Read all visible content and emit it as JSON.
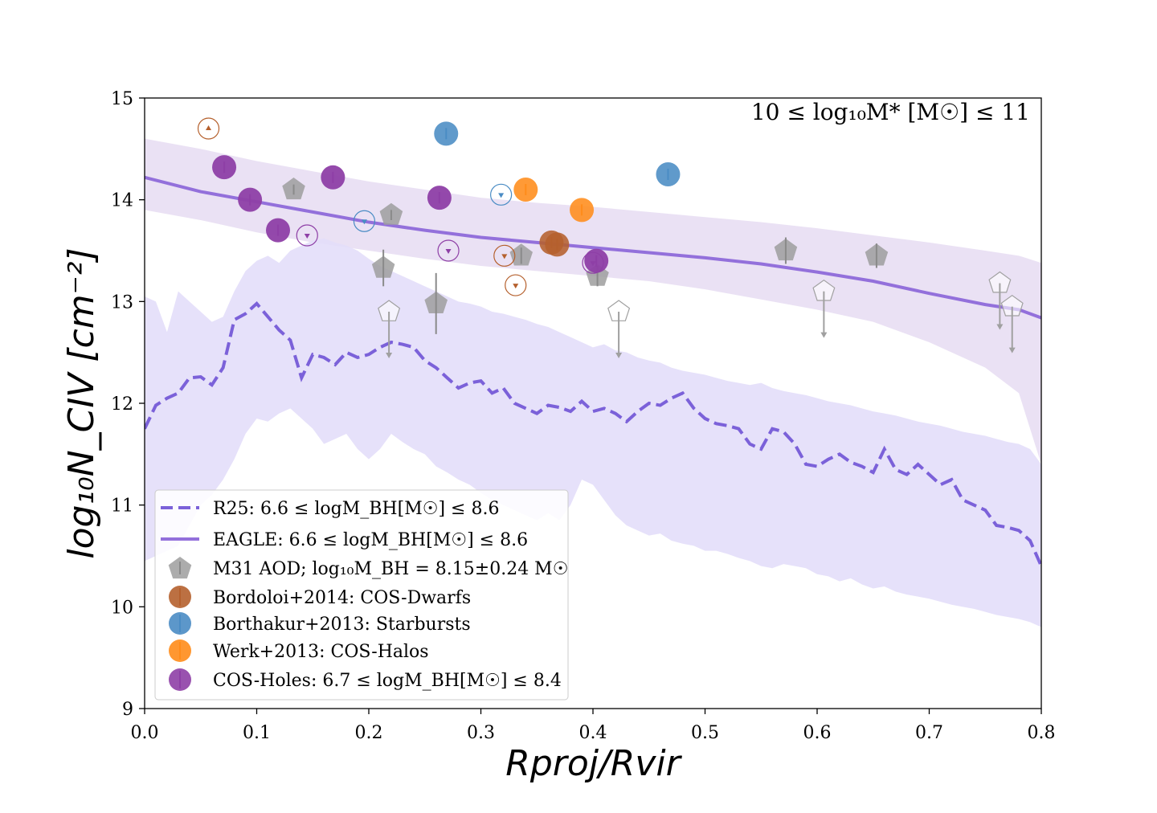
{
  "chart_data": {
    "type": "scatter",
    "title": "",
    "annotation": "10 ≤ log₁₀M* [M☉] ≤ 11",
    "xlabel": "Rproj/Rvir",
    "ylabel": "log₁₀N_CIV [cm⁻²]",
    "xlim": [
      0.0,
      0.8
    ],
    "ylim": [
      9,
      15
    ],
    "xticks": [
      "0.0",
      "0.1",
      "0.2",
      "0.3",
      "0.4",
      "0.5",
      "0.6",
      "0.7",
      "0.8"
    ],
    "yticks": [
      "9",
      "10",
      "11",
      "12",
      "13",
      "14",
      "15"
    ],
    "grid": false,
    "legend_position": "lower-left",
    "colors": {
      "model": "#7b61d9",
      "model_line": "#9370db",
      "eagle_band": "#e6dcf2",
      "r25_band": "#e3defa",
      "m31": "#9e9e9e",
      "bordoloi": "#b5602d",
      "borthakur": "#4a8cc4",
      "werk": "#ff8c1a",
      "cosholes": "#8e3fa6"
    },
    "legend": [
      {
        "key": "r25",
        "label": "R25: 6.6 ≤ logM_BH[M☉] ≤ 8.6"
      },
      {
        "key": "eagle",
        "label": "EAGLE:  6.6 ≤ logM_BH[M☉] ≤ 8.6"
      },
      {
        "key": "m31",
        "label": "M31 AOD; log₁₀M_BH = 8.15±0.24 M☉"
      },
      {
        "key": "bordoloi",
        "label": "Bordoloi+2014: COS-Dwarfs"
      },
      {
        "key": "borthakur",
        "label": "Borthakur+2013: Starbursts"
      },
      {
        "key": "werk",
        "label": "Werk+2013: COS-Halos"
      },
      {
        "key": "cosholes",
        "label": "COS-Holes: 6.7 ≤ logM_BH[M☉] ≤ 8.4"
      }
    ],
    "series": [
      {
        "name": "R25: 6.6 ≤ logM_BH[M☉] ≤ 8.6",
        "kind": "dashed-line-with-band",
        "x": [
          0.0,
          0.01,
          0.02,
          0.03,
          0.04,
          0.05,
          0.06,
          0.07,
          0.08,
          0.09,
          0.1,
          0.11,
          0.12,
          0.13,
          0.14,
          0.15,
          0.16,
          0.17,
          0.18,
          0.19,
          0.2,
          0.21,
          0.22,
          0.23,
          0.24,
          0.25,
          0.26,
          0.27,
          0.28,
          0.29,
          0.3,
          0.31,
          0.32,
          0.33,
          0.34,
          0.35,
          0.36,
          0.37,
          0.38,
          0.39,
          0.4,
          0.41,
          0.42,
          0.43,
          0.44,
          0.45,
          0.46,
          0.47,
          0.48,
          0.49,
          0.5,
          0.51,
          0.52,
          0.53,
          0.54,
          0.55,
          0.56,
          0.57,
          0.58,
          0.59,
          0.6,
          0.61,
          0.62,
          0.63,
          0.64,
          0.65,
          0.66,
          0.67,
          0.68,
          0.69,
          0.7,
          0.71,
          0.72,
          0.73,
          0.74,
          0.75,
          0.76,
          0.77,
          0.78,
          0.79,
          0.8
        ],
        "y": [
          11.75,
          11.98,
          12.05,
          12.1,
          12.25,
          12.26,
          12.18,
          12.35,
          12.82,
          12.88,
          12.98,
          12.85,
          12.72,
          12.62,
          12.25,
          12.48,
          12.45,
          12.38,
          12.5,
          12.45,
          12.48,
          12.55,
          12.6,
          12.58,
          12.55,
          12.42,
          12.35,
          12.25,
          12.15,
          12.2,
          12.22,
          12.1,
          12.15,
          12.0,
          11.95,
          11.9,
          11.98,
          11.96,
          11.92,
          12.02,
          11.92,
          11.95,
          11.9,
          11.82,
          11.92,
          12.0,
          11.98,
          12.05,
          12.1,
          11.95,
          11.85,
          11.8,
          11.78,
          11.75,
          11.6,
          11.55,
          11.75,
          11.72,
          11.6,
          11.4,
          11.38,
          11.45,
          11.5,
          11.42,
          11.38,
          11.32,
          11.55,
          11.35,
          11.3,
          11.4,
          11.3,
          11.2,
          11.25,
          11.05,
          11.0,
          10.95,
          10.8,
          10.78,
          10.75,
          10.65,
          10.4
        ],
        "lo": [
          10.45,
          10.5,
          10.55,
          10.6,
          10.8,
          11.0,
          11.1,
          11.25,
          11.45,
          11.7,
          11.85,
          11.82,
          11.9,
          11.95,
          11.85,
          11.75,
          11.6,
          11.65,
          11.7,
          11.55,
          11.45,
          11.55,
          11.7,
          11.62,
          11.55,
          11.5,
          11.38,
          11.32,
          11.25,
          11.2,
          11.12,
          11.05,
          11.0,
          10.95,
          10.9,
          10.85,
          10.92,
          10.85,
          11.0,
          11.25,
          11.2,
          11.05,
          10.9,
          10.8,
          10.75,
          10.7,
          10.72,
          10.65,
          10.62,
          10.6,
          10.55,
          10.55,
          10.52,
          10.48,
          10.45,
          10.4,
          10.38,
          10.42,
          10.4,
          10.38,
          10.32,
          10.3,
          10.25,
          10.28,
          10.22,
          10.18,
          10.2,
          10.15,
          10.12,
          10.1,
          10.08,
          10.05,
          10.02,
          10.0,
          9.98,
          9.95,
          9.92,
          9.9,
          9.88,
          9.85,
          9.8
        ],
        "hi": [
          13.05,
          13.0,
          12.7,
          13.1,
          13.0,
          12.9,
          12.8,
          12.85,
          13.1,
          13.3,
          13.4,
          13.45,
          13.38,
          13.5,
          13.55,
          13.6,
          13.62,
          13.58,
          13.55,
          13.5,
          13.42,
          13.35,
          13.3,
          13.25,
          13.2,
          13.15,
          13.1,
          13.05,
          13.0,
          12.98,
          12.95,
          12.9,
          12.88,
          12.85,
          12.82,
          12.78,
          12.75,
          12.7,
          12.65,
          12.6,
          12.55,
          12.58,
          12.52,
          12.5,
          12.45,
          12.42,
          12.4,
          12.35,
          12.32,
          12.3,
          12.28,
          12.25,
          12.22,
          12.2,
          12.18,
          12.2,
          12.15,
          12.12,
          12.1,
          12.08,
          12.05,
          12.02,
          12.0,
          11.98,
          11.95,
          11.92,
          11.9,
          11.88,
          11.85,
          11.82,
          11.8,
          11.78,
          11.75,
          11.72,
          11.7,
          11.68,
          11.65,
          11.62,
          11.6,
          11.55,
          11.4
        ]
      },
      {
        "name": "EAGLE:  6.6 ≤ logM_BH[M☉] ≤ 8.6",
        "kind": "solid-line-with-band",
        "x": [
          0.0,
          0.05,
          0.1,
          0.15,
          0.2,
          0.25,
          0.3,
          0.35,
          0.4,
          0.45,
          0.5,
          0.55,
          0.6,
          0.65,
          0.7,
          0.75,
          0.78,
          0.8
        ],
        "y": [
          14.22,
          14.08,
          13.98,
          13.88,
          13.78,
          13.7,
          13.63,
          13.58,
          13.53,
          13.48,
          13.43,
          13.37,
          13.29,
          13.2,
          13.08,
          12.97,
          12.92,
          12.84
        ],
        "lo": [
          13.9,
          13.8,
          13.68,
          13.58,
          13.5,
          13.42,
          13.35,
          13.3,
          13.25,
          13.2,
          13.12,
          13.02,
          12.92,
          12.8,
          12.6,
          12.35,
          12.1,
          11.4
        ],
        "hi": [
          14.6,
          14.5,
          14.38,
          14.28,
          14.18,
          14.1,
          14.02,
          13.97,
          13.93,
          13.88,
          13.83,
          13.78,
          13.72,
          13.65,
          13.58,
          13.5,
          13.45,
          13.38
        ]
      },
      {
        "name": "M31 AOD; log₁₀M_BH = 8.15±0.24 M☉",
        "kind": "pentagon",
        "points": [
          {
            "x": 0.133,
            "y": 14.1,
            "err": 0.05
          },
          {
            "x": 0.22,
            "y": 13.85,
            "err": 0.05
          },
          {
            "x": 0.213,
            "y": 13.33,
            "err": 0.18
          },
          {
            "x": 0.26,
            "y": 12.98,
            "err": 0.3
          },
          {
            "x": 0.336,
            "y": 13.45,
            "err": 0.08
          },
          {
            "x": 0.404,
            "y": 13.25,
            "err": 0.1
          },
          {
            "x": 0.572,
            "y": 13.5,
            "err": 0.13
          },
          {
            "x": 0.653,
            "y": 13.45,
            "err": 0.12
          }
        ],
        "upper_limits": [
          {
            "x": 0.218,
            "y": 12.9
          },
          {
            "x": 0.423,
            "y": 12.9
          },
          {
            "x": 0.606,
            "y": 13.1
          },
          {
            "x": 0.763,
            "y": 13.18
          },
          {
            "x": 0.774,
            "y": 12.95
          }
        ]
      },
      {
        "name": "Bordoloi+2014: COS-Dwarfs",
        "kind": "circle",
        "points": [
          {
            "x": 0.363,
            "y": 13.58
          },
          {
            "x": 0.368,
            "y": 13.56
          }
        ],
        "lower_limits": [
          {
            "x": 0.057,
            "y": 14.7
          }
        ],
        "upper_limits": [
          {
            "x": 0.321,
            "y": 13.45
          },
          {
            "x": 0.331,
            "y": 13.16
          }
        ]
      },
      {
        "name": "Borthakur+2013: Starbursts",
        "kind": "circle",
        "points": [
          {
            "x": 0.269,
            "y": 14.65
          },
          {
            "x": 0.467,
            "y": 14.25
          }
        ],
        "upper_limits": [
          {
            "x": 0.196,
            "y": 13.79
          },
          {
            "x": 0.318,
            "y": 14.05
          }
        ]
      },
      {
        "name": "Werk+2013: COS-Halos",
        "kind": "circle",
        "points": [
          {
            "x": 0.34,
            "y": 14.1
          },
          {
            "x": 0.39,
            "y": 13.9
          }
        ]
      },
      {
        "name": "COS-Holes: 6.7 ≤ logM_BH[M☉] ≤ 8.4",
        "kind": "circle",
        "points": [
          {
            "x": 0.071,
            "y": 14.32
          },
          {
            "x": 0.094,
            "y": 14.0
          },
          {
            "x": 0.119,
            "y": 13.7
          },
          {
            "x": 0.168,
            "y": 14.22
          },
          {
            "x": 0.263,
            "y": 14.02
          },
          {
            "x": 0.403,
            "y": 13.4
          }
        ],
        "upper_limits": [
          {
            "x": 0.145,
            "y": 13.65
          },
          {
            "x": 0.271,
            "y": 13.5
          },
          {
            "x": 0.4,
            "y": 13.38
          }
        ]
      }
    ]
  }
}
